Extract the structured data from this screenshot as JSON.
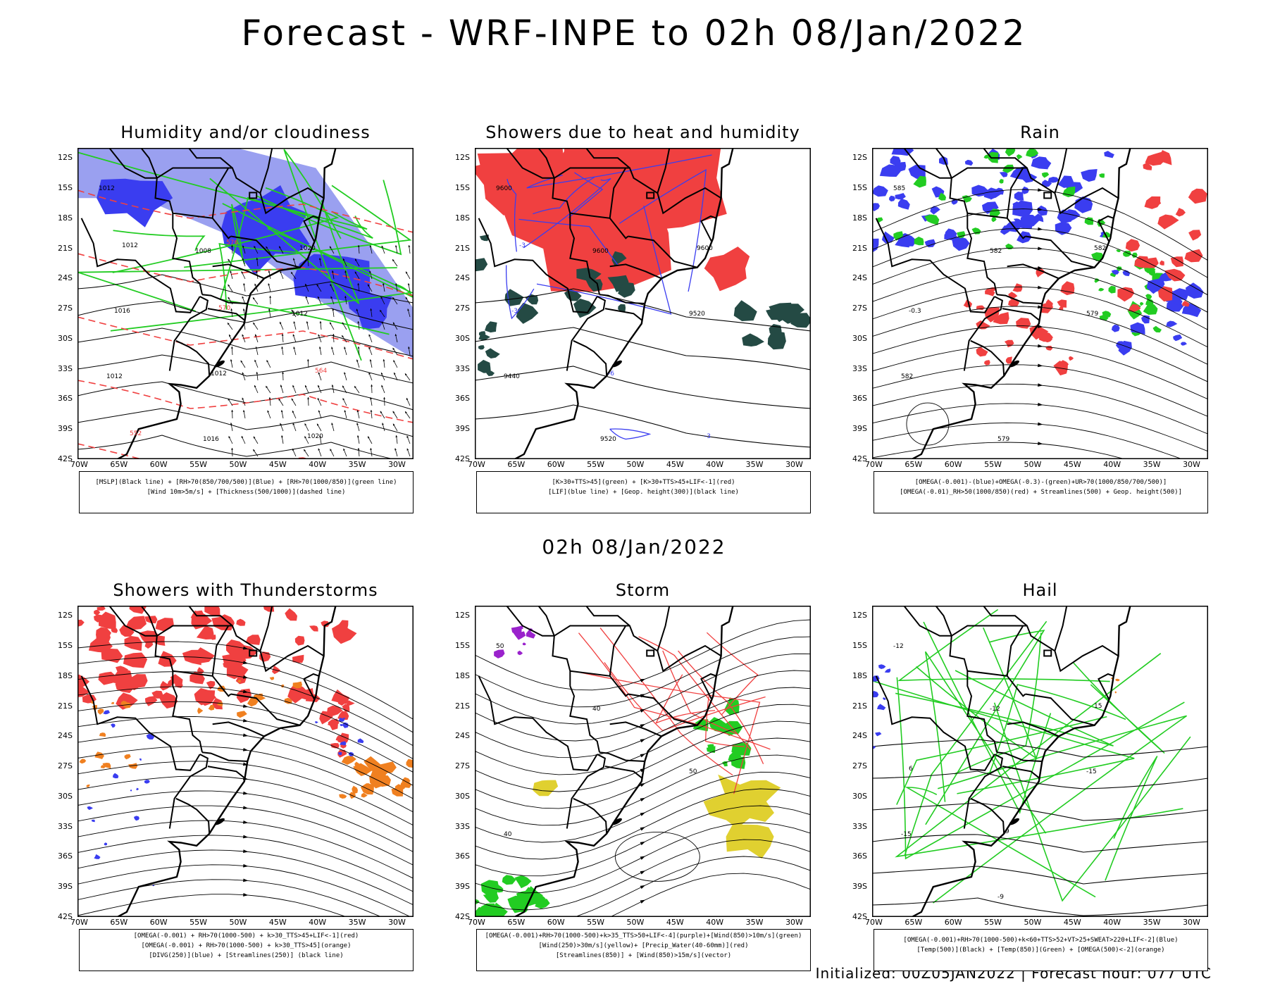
{
  "header": {
    "title": "Forecast - WRF-INPE to 02h 08/Jan/2022"
  },
  "mid_title": "02h 08/Jan/2022",
  "footer": "Initialized: 00Z05JAN2022 | Forecast hour: 077 UTC",
  "axes": {
    "lat_labels": [
      "12S",
      "15S",
      "18S",
      "21S",
      "24S",
      "27S",
      "30S",
      "33S",
      "36S",
      "39S",
      "42S"
    ],
    "lon_labels": [
      "70W",
      "65W",
      "60W",
      "55W",
      "50W",
      "45W",
      "40W",
      "35W",
      "30W"
    ]
  },
  "colors": {
    "blue": "#3a3df0",
    "light_blue": "#9aa0f0",
    "green": "#22cc22",
    "red": "#f04040",
    "dark_teal": "#244a44",
    "orange": "#f08020",
    "purple": "#9a22cc",
    "yellow": "#e0d030"
  },
  "panels": [
    {
      "title": "Humidity and/or cloudiness",
      "legend": [
        "[MSLP](Black line) + [RH>70(850/700/500)](Blue) + [RH>70(1000/850)](green line)",
        "[Wind 10m>5m/s] + [Thickness(500/1000)](dashed line)"
      ],
      "labels": [
        "1012",
        "1008",
        "1012",
        "1012",
        "1016",
        "1020",
        "1016",
        "1012",
        "1020",
        "1012",
        "570",
        "564",
        "552",
        "576"
      ]
    },
    {
      "title": "Showers due to heat and humidity",
      "legend": [
        "[K>30+TTS>45](green) + [K>30+TTS>45+LIF<-1](red)",
        "[LIF](blue line) + [Geop. height(300)](black line)"
      ],
      "labels": [
        "9600",
        "9600",
        "9520",
        "9440",
        "9520",
        "9600",
        "-3",
        "-6",
        "-3",
        "-3"
      ]
    },
    {
      "title": "Rain",
      "legend": [
        "[OMEGA(-0.001)-(blue)+OMEGA(-0.3)-(green)+UR>70(1000/850/700/500)]",
        "[OMEGA(-0.01)_RH>50(1000/850)(red) + Streamlines(500) + Geop. height(500)]"
      ],
      "labels": [
        "585",
        "582",
        "579",
        "582",
        "579",
        "582",
        "-0.3"
      ]
    },
    {
      "title": "Showers with Thunderstorms",
      "legend": [
        "[OMEGA(-0.001) + RH>70(1000-500) + k>30_TTS>45+LIF<-1](red)",
        "[OMEGA(-0.001) + RH>70(1000-500) + k>30_TTS>45](orange)",
        "[DIVG(250)](blue) + [Streamlines(250)] (black line)"
      ],
      "labels": []
    },
    {
      "title": "Storm",
      "legend": [
        "[OMEGA(-0.001)+RH>70(1000-500)+k>35_TTS>50+LIF<-4](purple)+[Wind(850)>10m/s](green)",
        "[Wind(250)>30m/s](yellow)+ [Precip_Water(40-60mm)](red)",
        "[Streamlines(850)] + [Wind(850)>15m/s](vector)"
      ],
      "labels": [
        "50",
        "40",
        "50",
        "40"
      ]
    },
    {
      "title": "Hail",
      "legend": [
        "[OMEGA(-0.001)+RH>70(1000-500)+k<60+TTS>52+VT>25+SWEAT>220+LIF<-2](Blue)",
        "[Temp(500)](Black) + [Temp(850)](Green) + [OMEGA(500)<-2](orange)"
      ],
      "labels": [
        "-12",
        "-12",
        "-15",
        "-15",
        "-9",
        "15",
        "6",
        "9"
      ]
    }
  ]
}
